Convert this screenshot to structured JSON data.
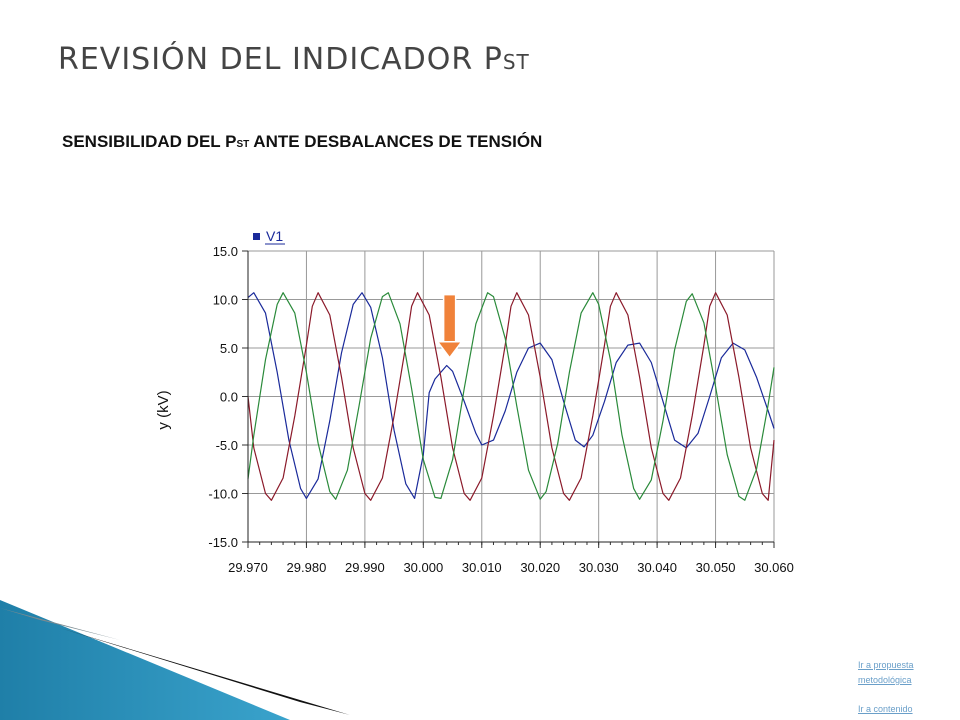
{
  "slide": {
    "title_main": "REVISIÓN DEL INDICADOR P",
    "title_sub": "ST",
    "subtitle_pre": "SENSIBILIDAD  DEL P",
    "subtitle_sub": "ST",
    "subtitle_post": " ANTE DESBALANCES DE TENSIÓN"
  },
  "nav": {
    "propuesta_line1": "Ir a propuesta",
    "propuesta_line2": "metodológica",
    "contenido": "Ir a contenido"
  },
  "colors": {
    "blue": "#1a2a9a",
    "red": "#8b1a2a",
    "green": "#2a8a3a",
    "arrow": "#f0823a",
    "grid": "#999999",
    "deco_blue": "#2e8fb8"
  },
  "chart_data": {
    "type": "line",
    "xlim": [
      29.97,
      30.06
    ],
    "ylim": [
      -15,
      15
    ],
    "ylabel": "y (kV)",
    "xticks": [
      "29.970",
      "29.980",
      "29.990",
      "30.000",
      "30.010",
      "30.020",
      "30.030",
      "30.040",
      "30.050",
      "30.060"
    ],
    "yticks": [
      "15.0",
      "10.0",
      "5.0",
      "0.0",
      "-5.0",
      "-10.0",
      "-15.0"
    ],
    "grid": true,
    "legend_position": "top-left",
    "series": [
      {
        "name": "V1",
        "color": "#1a2a9a",
        "points": [
          [
            29.97,
            10.2
          ],
          [
            29.971,
            10.7
          ],
          [
            29.973,
            8.6
          ],
          [
            29.975,
            2.5
          ],
          [
            29.977,
            -4.5
          ],
          [
            29.979,
            -9.5
          ],
          [
            29.98,
            -10.5
          ],
          [
            29.982,
            -8.5
          ],
          [
            29.984,
            -2.5
          ],
          [
            29.986,
            4.5
          ],
          [
            29.988,
            9.5
          ],
          [
            29.9895,
            10.7
          ],
          [
            29.991,
            9.2
          ],
          [
            29.993,
            4.0
          ],
          [
            29.995,
            -3.5
          ],
          [
            29.997,
            -9.0
          ],
          [
            29.9985,
            -10.5
          ],
          [
            30.0,
            -6.0
          ],
          [
            30.001,
            0.4
          ],
          [
            30.002,
            1.8
          ],
          [
            30.004,
            3.2
          ],
          [
            30.005,
            2.6
          ],
          [
            30.007,
            -0.5
          ],
          [
            30.009,
            -3.8
          ],
          [
            30.01,
            -5.0
          ],
          [
            30.012,
            -4.5
          ],
          [
            30.014,
            -1.5
          ],
          [
            30.016,
            2.5
          ],
          [
            30.018,
            5.0
          ],
          [
            30.02,
            5.5
          ],
          [
            30.022,
            3.8
          ],
          [
            30.024,
            -0.5
          ],
          [
            30.026,
            -4.5
          ],
          [
            30.0275,
            -5.2
          ],
          [
            30.029,
            -4.0
          ],
          [
            30.031,
            -0.5
          ],
          [
            30.033,
            3.5
          ],
          [
            30.035,
            5.3
          ],
          [
            30.037,
            5.5
          ],
          [
            30.039,
            3.5
          ],
          [
            30.041,
            -0.5
          ],
          [
            30.043,
            -4.5
          ],
          [
            30.045,
            -5.3
          ],
          [
            30.047,
            -3.8
          ],
          [
            30.049,
            0.0
          ],
          [
            30.051,
            4.0
          ],
          [
            30.053,
            5.5
          ],
          [
            30.055,
            4.8
          ],
          [
            30.057,
            2.0
          ],
          [
            30.059,
            -1.5
          ],
          [
            30.06,
            -3.3
          ]
        ]
      },
      {
        "name": "",
        "color": "#8b1a2a",
        "points": [
          [
            29.97,
            0.0
          ],
          [
            29.971,
            -5.3
          ],
          [
            29.973,
            -10.0
          ],
          [
            29.974,
            -10.7
          ],
          [
            29.976,
            -8.4
          ],
          [
            29.978,
            -2.0
          ],
          [
            29.98,
            5.3
          ],
          [
            29.981,
            9.3
          ],
          [
            29.982,
            10.7
          ],
          [
            29.984,
            8.4
          ],
          [
            29.986,
            2.0
          ],
          [
            29.988,
            -5.3
          ],
          [
            29.99,
            -10.0
          ],
          [
            29.991,
            -10.7
          ],
          [
            29.993,
            -8.4
          ],
          [
            29.995,
            -2.0
          ],
          [
            29.997,
            5.3
          ],
          [
            29.998,
            9.3
          ],
          [
            29.999,
            10.7
          ],
          [
            30.001,
            8.4
          ],
          [
            30.003,
            2.0
          ],
          [
            30.005,
            -5.3
          ],
          [
            30.007,
            -10.0
          ],
          [
            30.008,
            -10.7
          ],
          [
            30.01,
            -8.4
          ],
          [
            30.012,
            -2.0
          ],
          [
            30.014,
            5.3
          ],
          [
            30.015,
            9.3
          ],
          [
            30.016,
            10.7
          ],
          [
            30.018,
            8.4
          ],
          [
            30.02,
            2.0
          ],
          [
            30.022,
            -5.3
          ],
          [
            30.024,
            -10.0
          ],
          [
            30.025,
            -10.7
          ],
          [
            30.027,
            -8.4
          ],
          [
            30.029,
            -2.0
          ],
          [
            30.031,
            5.3
          ],
          [
            30.032,
            9.3
          ],
          [
            30.033,
            10.7
          ],
          [
            30.035,
            8.4
          ],
          [
            30.037,
            2.0
          ],
          [
            30.039,
            -5.3
          ],
          [
            30.041,
            -10.0
          ],
          [
            30.042,
            -10.7
          ],
          [
            30.044,
            -8.4
          ],
          [
            30.046,
            -2.0
          ],
          [
            30.048,
            5.3
          ],
          [
            30.049,
            9.3
          ],
          [
            30.05,
            10.7
          ],
          [
            30.052,
            8.4
          ],
          [
            30.054,
            2.0
          ],
          [
            30.056,
            -5.3
          ],
          [
            30.058,
            -10.0
          ],
          [
            30.059,
            -10.7
          ],
          [
            30.06,
            -4.5
          ]
        ]
      },
      {
        "name": "",
        "color": "#2a8a3a",
        "points": [
          [
            29.97,
            -8.5
          ],
          [
            29.971,
            -4.0
          ],
          [
            29.973,
            3.8
          ],
          [
            29.975,
            9.5
          ],
          [
            29.976,
            10.7
          ],
          [
            29.978,
            8.6
          ],
          [
            29.98,
            2.5
          ],
          [
            29.982,
            -4.8
          ],
          [
            29.984,
            -9.8
          ],
          [
            29.985,
            -10.6
          ],
          [
            29.987,
            -7.6
          ],
          [
            29.989,
            -1.0
          ],
          [
            29.991,
            6.0
          ],
          [
            29.993,
            10.3
          ],
          [
            29.994,
            10.7
          ],
          [
            29.996,
            7.5
          ],
          [
            29.998,
            0.8
          ],
          [
            30.0,
            -6.5
          ],
          [
            30.002,
            -10.4
          ],
          [
            30.003,
            -10.5
          ],
          [
            30.005,
            -6.5
          ],
          [
            30.007,
            0.8
          ],
          [
            30.009,
            7.5
          ],
          [
            30.011,
            10.7
          ],
          [
            30.012,
            10.3
          ],
          [
            30.014,
            6.0
          ],
          [
            30.016,
            -1.0
          ],
          [
            30.018,
            -7.6
          ],
          [
            30.02,
            -10.6
          ],
          [
            30.021,
            -9.8
          ],
          [
            30.023,
            -4.8
          ],
          [
            30.025,
            2.5
          ],
          [
            30.027,
            8.6
          ],
          [
            30.029,
            10.7
          ],
          [
            30.03,
            9.5
          ],
          [
            30.032,
            3.8
          ],
          [
            30.034,
            -4.0
          ],
          [
            30.036,
            -9.5
          ],
          [
            30.037,
            -10.6
          ],
          [
            30.039,
            -8.6
          ],
          [
            30.041,
            -2.5
          ],
          [
            30.043,
            4.8
          ],
          [
            30.045,
            9.8
          ],
          [
            30.046,
            10.6
          ],
          [
            30.048,
            7.6
          ],
          [
            30.05,
            1.0
          ],
          [
            30.052,
            -6.0
          ],
          [
            30.054,
            -10.3
          ],
          [
            30.055,
            -10.7
          ],
          [
            30.057,
            -7.5
          ],
          [
            30.059,
            -0.8
          ],
          [
            30.06,
            3.0
          ]
        ]
      }
    ],
    "annotation": {
      "type": "arrow",
      "x": 30.0045,
      "y_from": 10.5,
      "y_to": 4.0,
      "color": "#f0823a"
    }
  }
}
